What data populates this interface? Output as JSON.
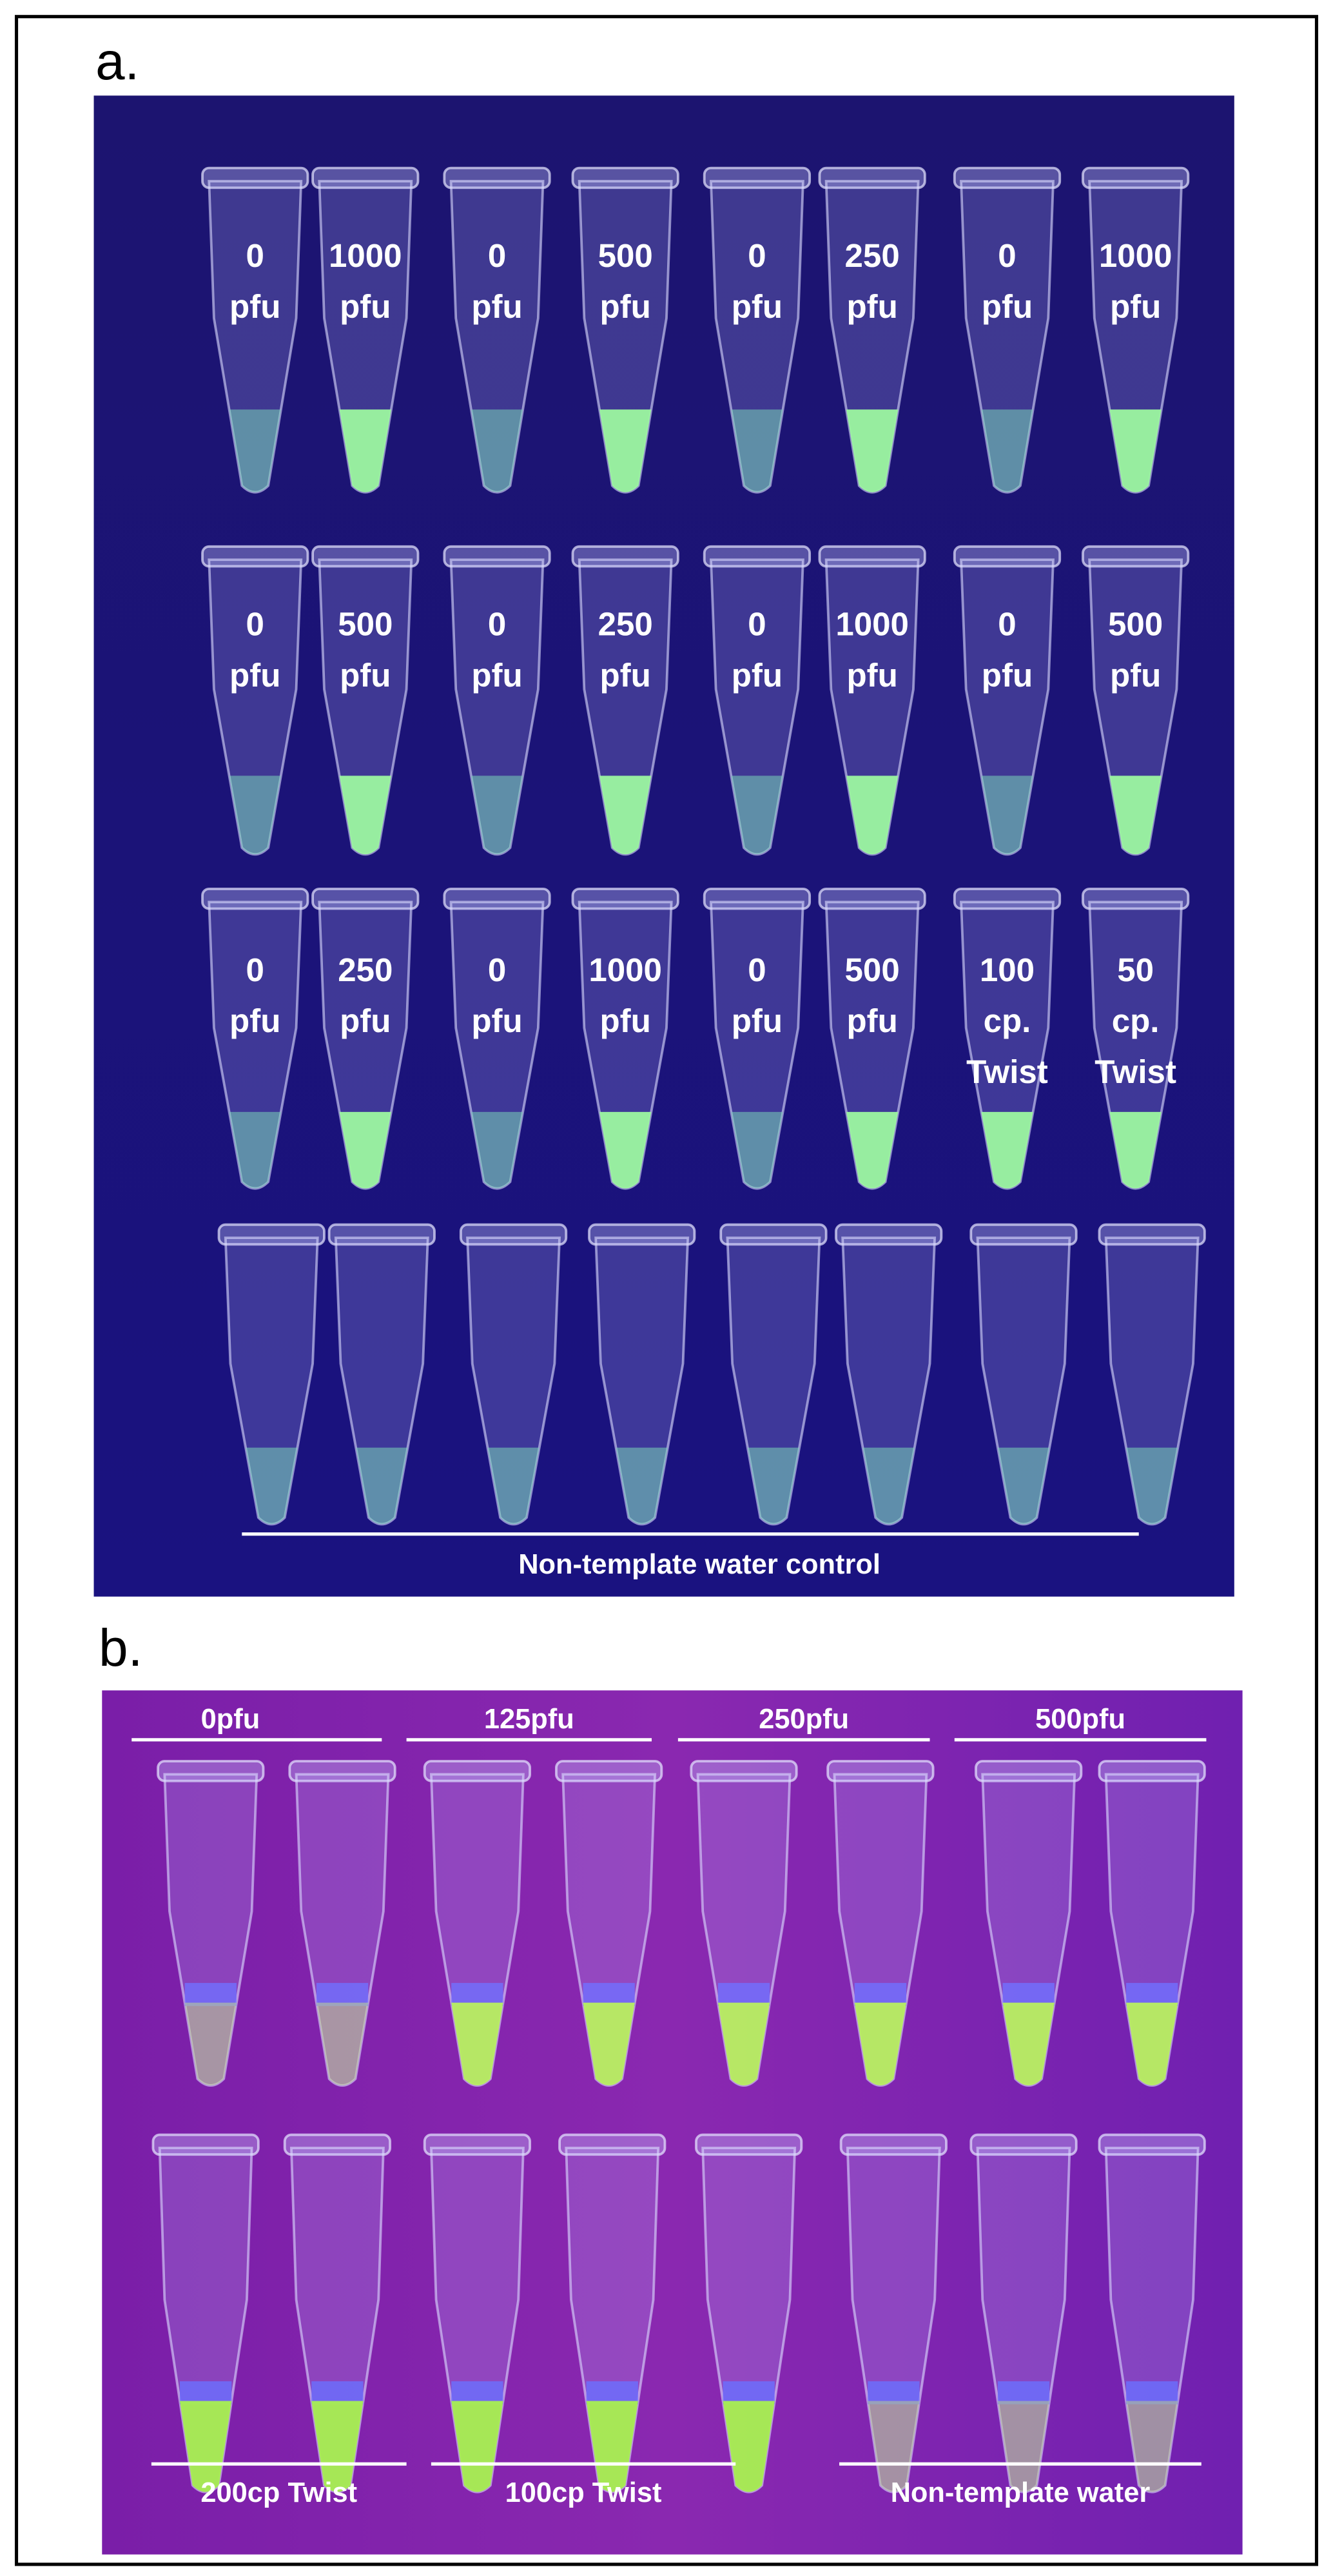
{
  "panel_a": {
    "label": "a.",
    "rows": [
      [
        [
          "0",
          "pfu"
        ],
        [
          "1000",
          "pfu"
        ],
        [
          "0",
          "pfu"
        ],
        [
          "500",
          "pfu"
        ],
        [
          "0",
          "pfu"
        ],
        [
          "250",
          "pfu"
        ],
        [
          "0",
          "pfu"
        ],
        [
          "1000",
          "pfu"
        ]
      ],
      [
        [
          "0",
          "pfu"
        ],
        [
          "500",
          "pfu"
        ],
        [
          "0",
          "pfu"
        ],
        [
          "250",
          "pfu"
        ],
        [
          "0",
          "pfu"
        ],
        [
          "1000",
          "pfu"
        ],
        [
          "0",
          "pfu"
        ],
        [
          "500",
          "pfu"
        ]
      ],
      [
        [
          "0",
          "pfu"
        ],
        [
          "250",
          "pfu"
        ],
        [
          "0",
          "pfu"
        ],
        [
          "1000",
          "pfu"
        ],
        [
          "0",
          "pfu"
        ],
        [
          "500",
          "pfu"
        ],
        [
          "100",
          "cp.",
          "Twist"
        ],
        [
          "50",
          "cp.",
          "Twist"
        ]
      ]
    ],
    "footer": "Non-template water control"
  },
  "panel_b": {
    "label": "b.",
    "top_groups": [
      "0pfu",
      "125pfu",
      "250pfu",
      "500pfu"
    ],
    "bottom_groups": [
      "200cp Twist",
      "100cp Twist",
      "Non-template water"
    ]
  }
}
